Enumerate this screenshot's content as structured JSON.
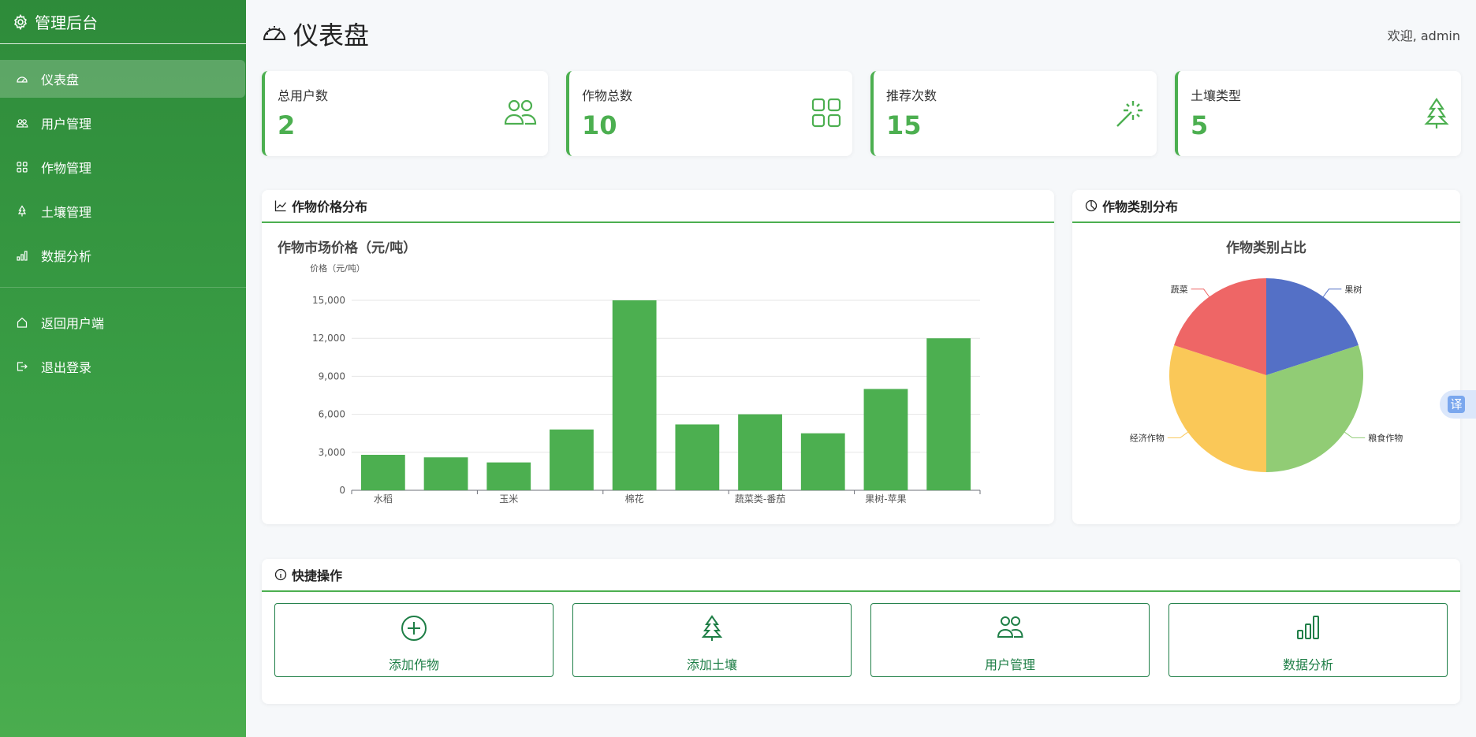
{
  "sidebar": {
    "brand": "管理后台",
    "items": [
      {
        "label": "仪表盘",
        "icon": "speedometer-icon",
        "active": true
      },
      {
        "label": "用户管理",
        "icon": "users-icon"
      },
      {
        "label": "作物管理",
        "icon": "grid-icon"
      },
      {
        "label": "土壤管理",
        "icon": "tree-icon"
      },
      {
        "label": "数据分析",
        "icon": "bar-chart-icon"
      }
    ],
    "bottom_items": [
      {
        "label": "返回用户端",
        "icon": "house-icon"
      },
      {
        "label": "退出登录",
        "icon": "logout-icon"
      }
    ]
  },
  "header": {
    "title": "仪表盘",
    "welcome": "欢迎, admin"
  },
  "stats": [
    {
      "label": "总用户数",
      "value": "2",
      "icon": "users-icon"
    },
    {
      "label": "作物总数",
      "value": "10",
      "icon": "grid-icon"
    },
    {
      "label": "推荐次数",
      "value": "15",
      "icon": "magic-wand-icon"
    },
    {
      "label": "土壤类型",
      "value": "5",
      "icon": "tree-icon"
    }
  ],
  "price_panel": {
    "title": "作物价格分布"
  },
  "category_panel": {
    "title": "作物类别分布"
  },
  "quick": {
    "title": "快捷操作",
    "buttons": [
      {
        "label": "添加作物",
        "icon": "plus-circle-icon"
      },
      {
        "label": "添加土壤",
        "icon": "tree-icon"
      },
      {
        "label": "用户管理",
        "icon": "users-icon"
      },
      {
        "label": "数据分析",
        "icon": "bar-chart-icon"
      }
    ]
  },
  "translate_label": "译",
  "colors": {
    "primary": "#4caf50",
    "sidebar": "#2e8b3a",
    "quick": "#1e7e46"
  },
  "chart_data": [
    {
      "type": "bar",
      "title": "作物市场价格（元/吨）",
      "ylabel": "价格（元/吨）",
      "xlabel": "",
      "ylim": [
        0,
        15000
      ],
      "yticks": [
        "0",
        "3,000",
        "6,000",
        "9,000",
        "12,000",
        "15,000"
      ],
      "categories": [
        "水稻",
        "",
        "玉米",
        "",
        "棉花",
        "",
        "蔬菜类-番茄",
        "",
        "果树-苹果",
        ""
      ],
      "values": [
        2800,
        2600,
        2200,
        4800,
        15000,
        5200,
        6000,
        4500,
        8000,
        12000
      ],
      "color": "#4caf50",
      "grid": true
    },
    {
      "type": "pie",
      "title": "作物类别占比",
      "slices": [
        {
          "label": "果树",
          "value": 20,
          "color": "#5470c6"
        },
        {
          "label": "粮食作物",
          "value": 30,
          "color": "#91cc75"
        },
        {
          "label": "经济作物",
          "value": 30,
          "color": "#fac858"
        },
        {
          "label": "蔬菜",
          "value": 20,
          "color": "#ee6666"
        }
      ]
    }
  ]
}
